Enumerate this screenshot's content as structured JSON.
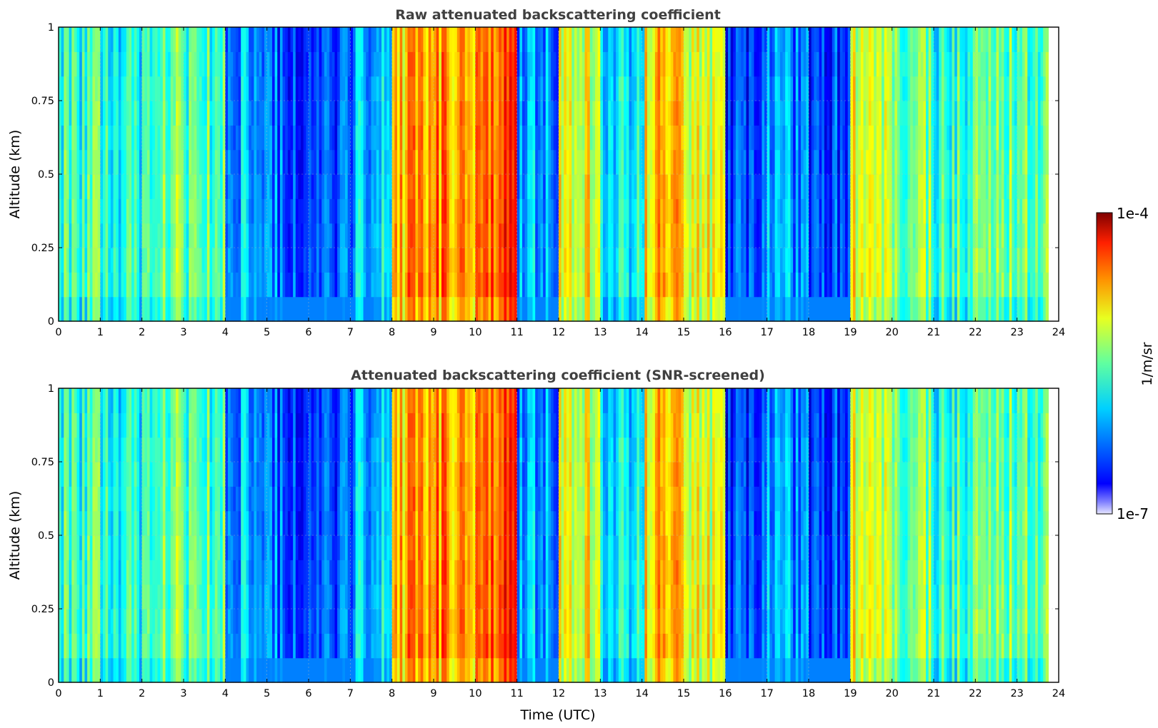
{
  "chart_data": [
    {
      "type": "heatmap",
      "title": "Raw attenuated backscattering coefficient",
      "xlabel": "",
      "ylabel": "Altitude (km)",
      "xlim": [
        0,
        24
      ],
      "ylim": [
        0,
        1
      ],
      "xticks": [
        "0",
        "1",
        "2",
        "3",
        "4",
        "5",
        "6",
        "7",
        "8",
        "9",
        "10",
        "11",
        "12",
        "13",
        "14",
        "15",
        "16",
        "17",
        "18",
        "19",
        "20",
        "21",
        "22",
        "23",
        "24"
      ],
      "yticks": [
        "0",
        "0.25",
        "0.5",
        "0.75",
        "1"
      ],
      "grid": true,
      "data_end_time": 23.75,
      "value_scale": "log",
      "profile_level_by_hour": [
        0.45,
        0.42,
        0.5,
        0.47,
        0.33,
        0.25,
        0.25,
        0.35,
        0.72,
        0.75,
        0.82,
        0.3,
        0.62,
        0.4,
        0.7,
        0.6,
        0.2,
        0.3,
        0.2,
        0.62,
        0.5,
        0.45,
        0.5,
        0.5
      ]
    },
    {
      "type": "heatmap",
      "title": "Attenuated backscattering coefficient (SNR-screened)",
      "xlabel": "Time (UTC)",
      "ylabel": "Altitude (km)",
      "xlim": [
        0,
        24
      ],
      "ylim": [
        0,
        1
      ],
      "xticks": [
        "0",
        "1",
        "2",
        "3",
        "4",
        "5",
        "6",
        "7",
        "8",
        "9",
        "10",
        "11",
        "12",
        "13",
        "14",
        "15",
        "16",
        "17",
        "18",
        "19",
        "20",
        "21",
        "22",
        "23",
        "24"
      ],
      "yticks": [
        "0",
        "0.25",
        "0.5",
        "0.75",
        "1"
      ],
      "grid": true,
      "data_end_time": 23.75,
      "value_scale": "log",
      "profile_level_by_hour": [
        0.45,
        0.42,
        0.5,
        0.47,
        0.33,
        0.25,
        0.25,
        0.35,
        0.72,
        0.75,
        0.82,
        0.3,
        0.62,
        0.4,
        0.7,
        0.6,
        0.2,
        0.3,
        0.2,
        0.62,
        0.5,
        0.45,
        0.5,
        0.5
      ]
    }
  ],
  "colorbar": {
    "min_label": "1e-7",
    "max_label": "1e-4",
    "unit_label": "1/m/sr",
    "colormap": "jet"
  },
  "colors": {
    "title": "#404040",
    "grid": "#bbbbbb"
  }
}
